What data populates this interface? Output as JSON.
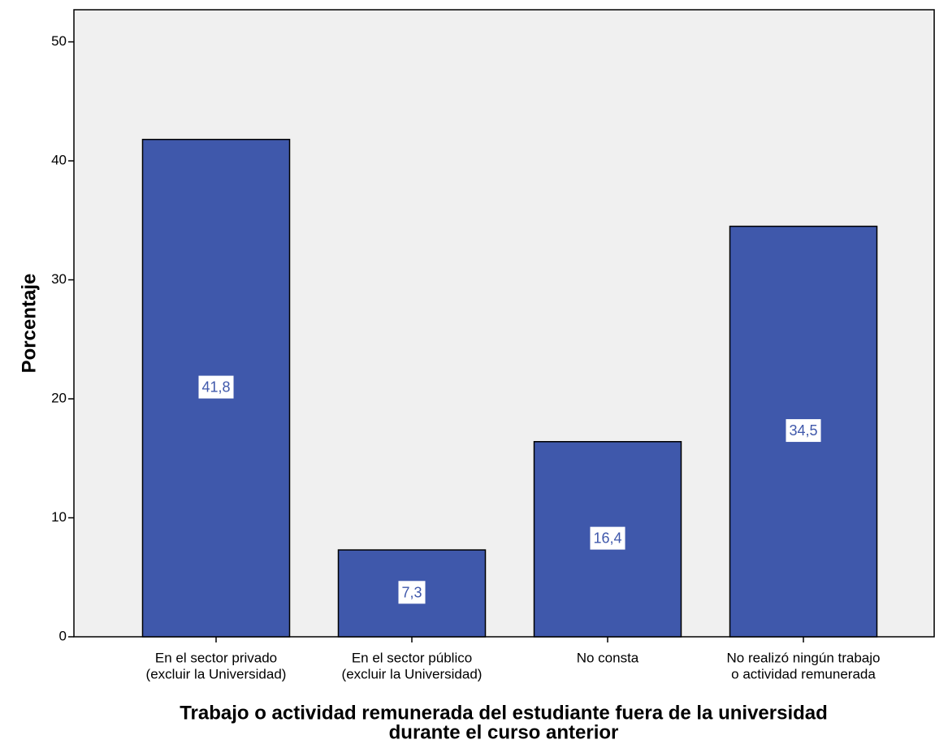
{
  "chart_data": {
    "type": "bar",
    "categories": [
      [
        "En el sector privado",
        "(excluir la Universidad)"
      ],
      [
        "En el sector público",
        "(excluir la Universidad)"
      ],
      [
        "No consta"
      ],
      [
        "No realizó ningún trabajo",
        "o actividad remunerada"
      ]
    ],
    "values": [
      41.8,
      7.3,
      16.4,
      34.5
    ],
    "value_labels": [
      "41,8",
      "7,3",
      "16,4",
      "34,5"
    ],
    "color": "#3f58ab",
    "ylim": [
      0,
      52.7
    ],
    "yticks": [
      0,
      10,
      20,
      30,
      40,
      50
    ],
    "y_label": "Porcentaje",
    "x_label": [
      "Trabajo o actividad remunerada del estudiante fuera de la universidad",
      "durante el curso anterior"
    ]
  }
}
